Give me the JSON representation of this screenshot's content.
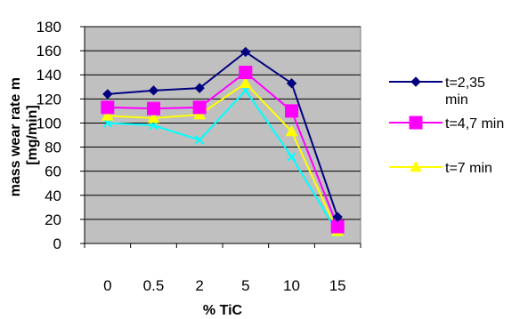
{
  "chart_data": {
    "type": "line",
    "xlabel": "% TiC",
    "ylabel_lines": [
      "mass wear rate m",
      "[mg/min]"
    ],
    "categories": [
      "0",
      "0.5",
      "2",
      "5",
      "10",
      "15"
    ],
    "ylim": [
      0,
      180
    ],
    "yticks": [
      "0",
      "20",
      "40",
      "60",
      "80",
      "100",
      "120",
      "140",
      "160",
      "180"
    ],
    "grid": true,
    "legend_position": "right",
    "series": [
      {
        "name_lines": [
          "t=2,35",
          "min"
        ],
        "color": "#000080",
        "marker": "diamond",
        "values": [
          124,
          127,
          129,
          159,
          133,
          22
        ]
      },
      {
        "name_lines": [
          "t=4,7 min"
        ],
        "color": "#ff00ff",
        "marker": "square",
        "values": [
          113,
          112,
          113,
          142,
          110,
          14
        ]
      },
      {
        "name_lines": [
          "t=7 min"
        ],
        "color": "#ffff00",
        "marker": "triangle",
        "values": [
          106,
          104,
          107,
          133,
          93,
          10
        ]
      },
      {
        "color": "#00ffff",
        "marker": "x",
        "values": [
          100,
          98,
          86,
          127,
          72,
          9
        ]
      }
    ]
  }
}
